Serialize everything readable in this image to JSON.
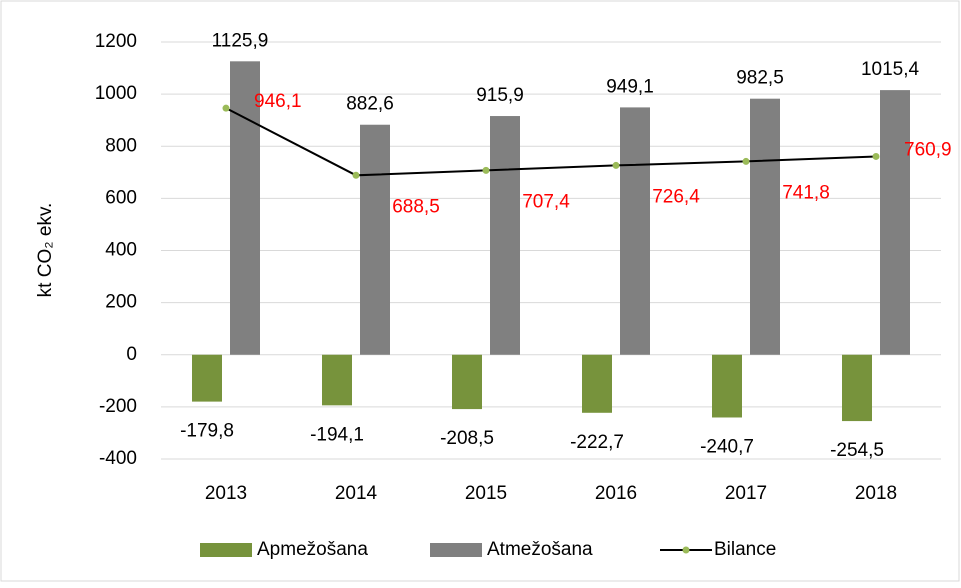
{
  "chart_data": {
    "type": "bar",
    "y_label": "kt CO₂ ekv.",
    "categories": [
      "2013",
      "2014",
      "2015",
      "2016",
      "2017",
      "2018"
    ],
    "series": [
      {
        "name": "Apmežošana",
        "type": "bar",
        "color": "#77933c",
        "label_color": "#000000",
        "values": [
          -179.8,
          -194.1,
          -208.5,
          -222.7,
          -240.7,
          -254.5
        ],
        "value_labels": [
          "-179,8",
          "-194,1",
          "-208,5",
          "-222,7",
          "-240,7",
          "-254,5"
        ]
      },
      {
        "name": "Atmežošana",
        "type": "bar",
        "color": "#808080",
        "label_color": "#000000",
        "values": [
          1125.9,
          882.6,
          915.9,
          949.1,
          982.5,
          1015.4
        ],
        "value_labels": [
          "1125,9",
          "882,6",
          "915,9",
          "949,1",
          "982,5",
          "1015,4"
        ]
      },
      {
        "name": "Bilance",
        "type": "line",
        "color": "#000000",
        "marker_color": "#9bbb59",
        "label_color": "#ff0000",
        "values": [
          946.1,
          688.5,
          707.4,
          726.4,
          741.8,
          760.9
        ],
        "value_labels": [
          "946,1",
          "688,5",
          "707,4",
          "726,4",
          "741,8",
          "760,9"
        ]
      }
    ],
    "ylim": [
      -400,
      1200
    ],
    "yticks": [
      -400,
      -200,
      0,
      200,
      400,
      600,
      800,
      1000,
      1200
    ],
    "grid": true,
    "legend": "bottom"
  }
}
